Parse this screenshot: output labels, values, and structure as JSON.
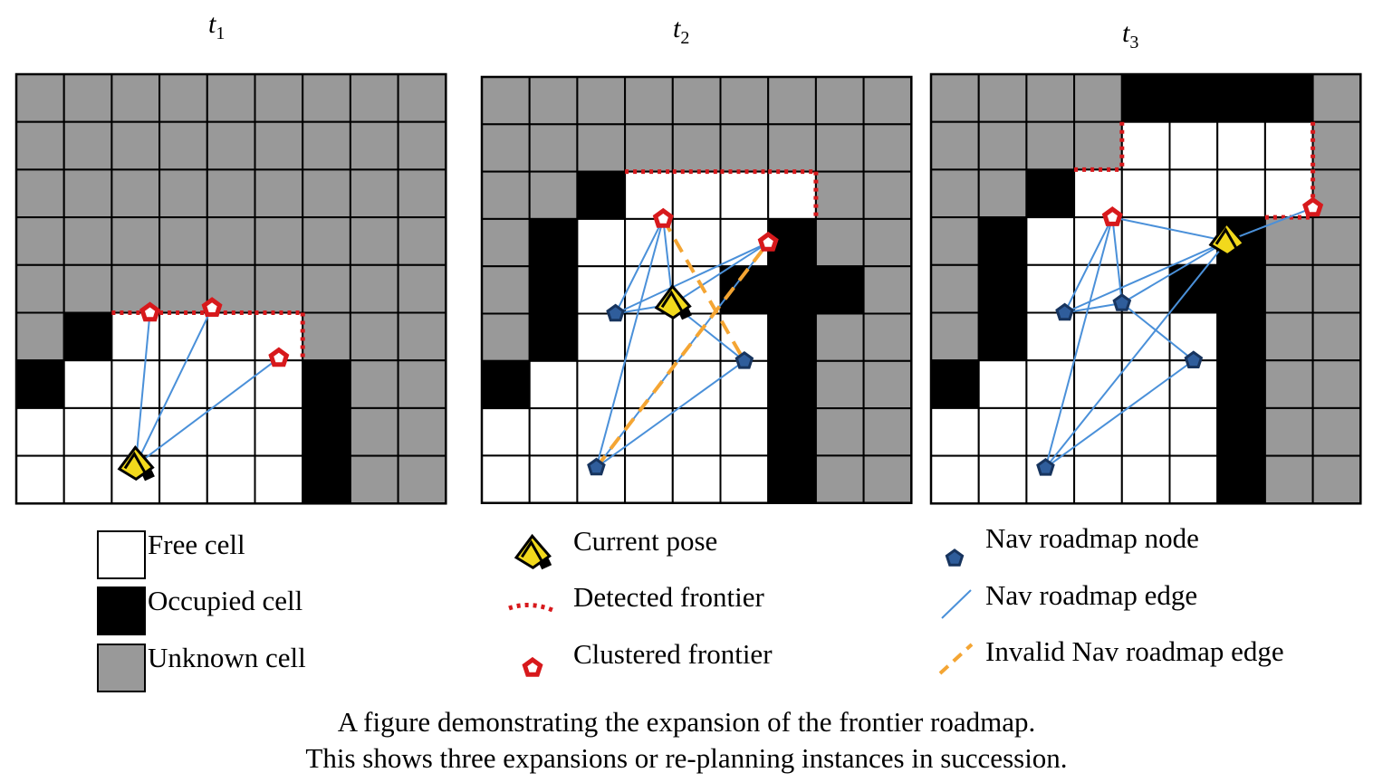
{
  "panels": [
    {
      "title_var": "t",
      "title_sub": "1",
      "grid": [
        "UUUUUUUUU",
        "UUUUUUUUU",
        "UUUUUUUUU",
        "UUUUUUUUU",
        "UUUUUUUUU",
        "UOFFFFUUU",
        "OFFFFFOUU",
        "FFFFFFOUU",
        "FFFFFFOUU"
      ],
      "pose": [
        2.5,
        8.2
      ],
      "clusters": [
        [
          2.8,
          5.0
        ],
        [
          4.1,
          4.9
        ],
        [
          5.5,
          5.95
        ]
      ],
      "edges": [
        [
          [
            2.5,
            8.2
          ],
          [
            2.8,
            5.0
          ]
        ],
        [
          [
            2.5,
            8.2
          ],
          [
            4.1,
            4.9
          ]
        ],
        [
          [
            2.5,
            8.2
          ],
          [
            5.5,
            5.95
          ]
        ]
      ]
    },
    {
      "title_var": "t",
      "title_sub": "2",
      "grid": [
        "UUUUUUUUU",
        "UUUUUUUUU",
        "UUOFFFFUU",
        "UOFFFFOUU",
        "UOFFFOOOU",
        "UOFFFFOUU",
        "OFFFFFOUU",
        "FFFFFFOUU",
        "FFFFFFOUU"
      ],
      "pose": [
        4.0,
        4.8
      ],
      "nodes": [
        [
          2.8,
          5.0
        ],
        [
          5.5,
          6.0
        ],
        [
          2.4,
          8.25
        ]
      ],
      "clusters": [
        [
          3.8,
          3.0
        ],
        [
          6.0,
          3.5
        ]
      ],
      "edges": [
        [
          [
            2.8,
            5.0
          ],
          [
            3.8,
            3.0
          ]
        ],
        [
          [
            2.8,
            5.0
          ],
          [
            6.0,
            3.5
          ]
        ],
        [
          [
            2.8,
            5.0
          ],
          [
            4.0,
            4.8
          ]
        ],
        [
          [
            2.4,
            8.25
          ],
          [
            3.8,
            3.0
          ]
        ],
        [
          [
            2.4,
            8.25
          ],
          [
            6.0,
            3.5
          ]
        ],
        [
          [
            2.4,
            8.25
          ],
          [
            5.5,
            6.0
          ]
        ],
        [
          [
            4.0,
            4.8
          ],
          [
            3.8,
            3.0
          ]
        ],
        [
          [
            4.0,
            4.8
          ],
          [
            6.0,
            3.5
          ]
        ],
        [
          [
            4.0,
            4.8
          ],
          [
            5.5,
            6.0
          ]
        ]
      ],
      "invalid_edges": [
        [
          [
            2.4,
            8.25
          ],
          [
            6.0,
            3.5
          ]
        ],
        [
          [
            3.8,
            3.0
          ],
          [
            5.5,
            6.0
          ]
        ]
      ]
    },
    {
      "title_var": "t",
      "title_sub": "3",
      "grid": [
        "UUUUOOOOU",
        "UUUUFFFFU",
        "UUOFFFFFU",
        "UOFFFFOUU",
        "UOFFFOOUU",
        "UOFFFFOUU",
        "OFFFFFOUU",
        "FFFFFFOUU",
        "FFFFFFOUU"
      ],
      "pose": [
        6.2,
        3.5
      ],
      "nodes": [
        [
          2.8,
          5.0
        ],
        [
          4.0,
          4.8
        ],
        [
          5.5,
          6.0
        ],
        [
          2.4,
          8.25
        ]
      ],
      "clusters": [
        [
          3.8,
          3.0
        ],
        [
          8.0,
          2.8
        ]
      ],
      "edges": [
        [
          [
            2.8,
            5.0
          ],
          [
            3.8,
            3.0
          ]
        ],
        [
          [
            2.8,
            5.0
          ],
          [
            6.2,
            3.5
          ]
        ],
        [
          [
            2.8,
            5.0
          ],
          [
            4.0,
            4.8
          ]
        ],
        [
          [
            2.4,
            8.25
          ],
          [
            3.8,
            3.0
          ]
        ],
        [
          [
            2.4,
            8.25
          ],
          [
            6.2,
            3.5
          ]
        ],
        [
          [
            2.4,
            8.25
          ],
          [
            5.5,
            6.0
          ]
        ],
        [
          [
            4.0,
            4.8
          ],
          [
            3.8,
            3.0
          ]
        ],
        [
          [
            4.0,
            4.8
          ],
          [
            6.2,
            3.5
          ]
        ],
        [
          [
            4.0,
            4.8
          ],
          [
            5.5,
            6.0
          ]
        ],
        [
          [
            3.8,
            3.0
          ],
          [
            6.2,
            3.5
          ]
        ],
        [
          [
            6.2,
            3.5
          ],
          [
            8.0,
            2.8
          ]
        ]
      ]
    }
  ],
  "legend": {
    "free_cell": "Free cell",
    "occupied_cell": "Occupied cell",
    "unknown_cell": "Unknown cell",
    "current_pose": "Current pose",
    "detected_frontier": "Detected frontier",
    "clustered_frontier": "Clustered frontier",
    "nav_node": "Nav roadmap node",
    "nav_edge": "Nav roadmap edge",
    "invalid_edge": "Invalid Nav roadmap edge"
  },
  "caption": {
    "line1": "A figure demonstrating the expansion of the frontier roadmap.",
    "line2": "This shows three expansions or re-planning instances in succession."
  },
  "colors": {
    "free": "#ffffff",
    "occupied": "#000000",
    "unknown": "#999999",
    "frontier": "#d7191c",
    "edge": "#4a90d9",
    "invalid": "#f4a533",
    "node": "#2f5d9b",
    "pose": "#f2d91c"
  }
}
